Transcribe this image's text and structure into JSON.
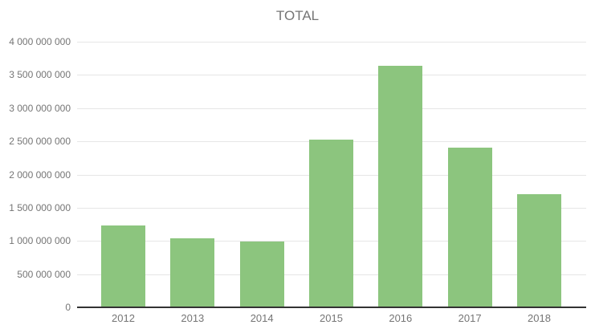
{
  "chart_data": {
    "type": "bar",
    "title": "TOTAL",
    "categories": [
      "2012",
      "2013",
      "2014",
      "2015",
      "2016",
      "2017",
      "2018"
    ],
    "values": [
      1230000000,
      1040000000,
      990000000,
      2520000000,
      3640000000,
      2400000000,
      1700000000
    ],
    "xlabel": "",
    "ylabel": "",
    "ylim": [
      0,
      4000000000
    ],
    "ytick_step": 500000000,
    "ytick_labels": [
      "0",
      "500 000 000",
      "1 000 000 000",
      "1 500 000 000",
      "2 000 000 000",
      "2 500 000 000",
      "3 000 000 000",
      "3 500 000 000",
      "4 000 000 000"
    ],
    "grid": true,
    "legend_position": "none",
    "colors": {
      "bar": "#8cc57e",
      "gridline": "#e6e6e6",
      "axis_line": "#333333",
      "tick_text": "#757575",
      "title_text": "#757575",
      "background": "#ffffff"
    }
  }
}
